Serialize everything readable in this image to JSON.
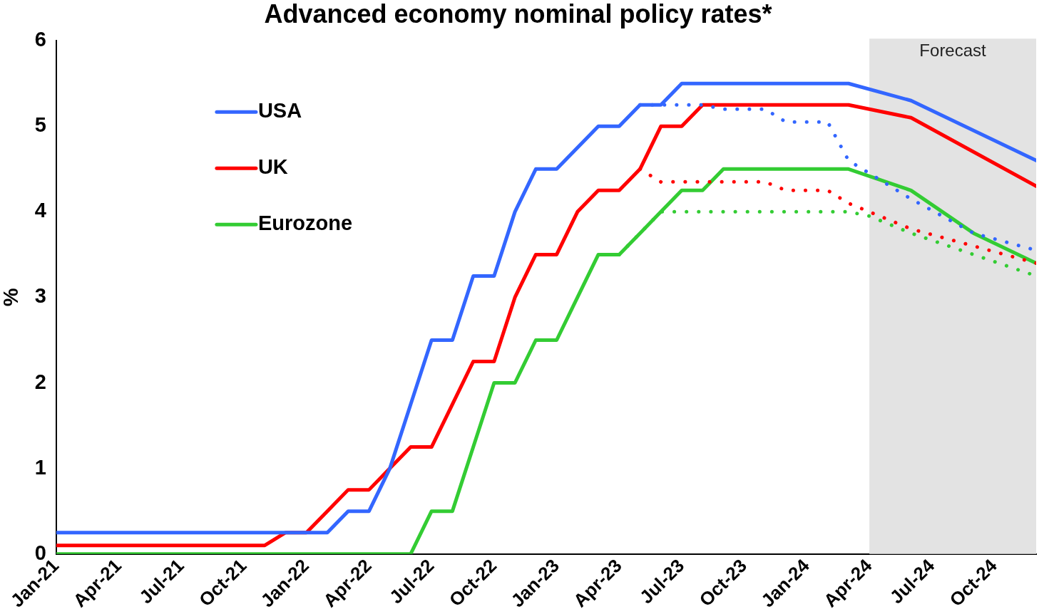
{
  "chart_data": {
    "type": "line",
    "title": "Advanced economy nominal policy rates*",
    "ylabel": "%",
    "xlim": [
      "2021-01",
      "2024-12"
    ],
    "xticks": [
      {
        "value": "2021-01",
        "label": "Jan-21"
      },
      {
        "value": "2021-04",
        "label": "Apr-21"
      },
      {
        "value": "2021-07",
        "label": "Jul-21"
      },
      {
        "value": "2021-10",
        "label": "Oct-21"
      },
      {
        "value": "2022-01",
        "label": "Jan-22"
      },
      {
        "value": "2022-04",
        "label": "Apr-22"
      },
      {
        "value": "2022-07",
        "label": "Jul-22"
      },
      {
        "value": "2022-10",
        "label": "Oct-22"
      },
      {
        "value": "2023-01",
        "label": "Jan-23"
      },
      {
        "value": "2023-04",
        "label": "Apr-23"
      },
      {
        "value": "2023-07",
        "label": "Jul-23"
      },
      {
        "value": "2023-10",
        "label": "Oct-23"
      },
      {
        "value": "2024-01",
        "label": "Jan-24"
      },
      {
        "value": "2024-04",
        "label": "Apr-24"
      },
      {
        "value": "2024-07",
        "label": "Jul-24"
      },
      {
        "value": "2024-10",
        "label": "Oct-24"
      }
    ],
    "ylim": [
      0,
      6
    ],
    "yticks": [
      0,
      1,
      2,
      3,
      4,
      5,
      6
    ],
    "grid": false,
    "legend": "top left",
    "marker": "none",
    "bands": [
      {
        "axis": "x",
        "from": "2024-04",
        "to": "2024-12",
        "label": "Forecast",
        "color": "#e3e3e3"
      }
    ],
    "series": [
      {
        "name": "USA",
        "color": "#3366ff",
        "line_style": "solid",
        "x": [
          "2021-01",
          "2021-02",
          "2021-03",
          "2021-04",
          "2021-05",
          "2021-06",
          "2021-07",
          "2021-08",
          "2021-09",
          "2021-10",
          "2021-11",
          "2021-12",
          "2022-01",
          "2022-02",
          "2022-03",
          "2022-04",
          "2022-05",
          "2022-06",
          "2022-07",
          "2022-08",
          "2022-09",
          "2022-10",
          "2022-11",
          "2022-12",
          "2023-01",
          "2023-02",
          "2023-03",
          "2023-04",
          "2023-05",
          "2023-06",
          "2023-07",
          "2023-08",
          "2023-09",
          "2023-10",
          "2023-11",
          "2023-12",
          "2024-01",
          "2024-02",
          "2024-03",
          "2024-06",
          "2024-12"
        ],
        "values": [
          0.25,
          0.25,
          0.25,
          0.25,
          0.25,
          0.25,
          0.25,
          0.25,
          0.25,
          0.25,
          0.25,
          0.25,
          0.25,
          0.25,
          0.5,
          0.5,
          1.0,
          1.75,
          2.5,
          2.5,
          3.25,
          3.25,
          4.0,
          4.5,
          4.5,
          4.75,
          5.0,
          5.0,
          5.25,
          5.25,
          5.5,
          5.5,
          5.5,
          5.5,
          5.5,
          5.5,
          5.5,
          5.5,
          5.5,
          5.3,
          4.6
        ]
      },
      {
        "name": "UK",
        "color": "#ff0000",
        "line_style": "solid",
        "x": [
          "2021-01",
          "2021-02",
          "2021-03",
          "2021-04",
          "2021-05",
          "2021-06",
          "2021-07",
          "2021-08",
          "2021-09",
          "2021-10",
          "2021-11",
          "2021-12",
          "2022-01",
          "2022-02",
          "2022-03",
          "2022-04",
          "2022-05",
          "2022-06",
          "2022-07",
          "2022-08",
          "2022-09",
          "2022-10",
          "2022-11",
          "2022-12",
          "2023-01",
          "2023-02",
          "2023-03",
          "2023-04",
          "2023-05",
          "2023-06",
          "2023-07",
          "2023-08",
          "2023-09",
          "2023-10",
          "2023-11",
          "2023-12",
          "2024-01",
          "2024-02",
          "2024-03",
          "2024-06",
          "2024-12"
        ],
        "values": [
          0.1,
          0.1,
          0.1,
          0.1,
          0.1,
          0.1,
          0.1,
          0.1,
          0.1,
          0.1,
          0.1,
          0.25,
          0.25,
          0.5,
          0.75,
          0.75,
          1.0,
          1.25,
          1.25,
          1.75,
          2.25,
          2.25,
          3.0,
          3.5,
          3.5,
          4.0,
          4.25,
          4.25,
          4.5,
          5.0,
          5.0,
          5.25,
          5.25,
          5.25,
          5.25,
          5.25,
          5.25,
          5.25,
          5.25,
          5.1,
          4.3
        ]
      },
      {
        "name": "Eurozone",
        "color": "#33cc33",
        "line_style": "solid",
        "x": [
          "2021-01",
          "2021-02",
          "2021-03",
          "2021-04",
          "2021-05",
          "2021-06",
          "2021-07",
          "2021-08",
          "2021-09",
          "2021-10",
          "2021-11",
          "2021-12",
          "2022-01",
          "2022-02",
          "2022-03",
          "2022-04",
          "2022-05",
          "2022-06",
          "2022-07",
          "2022-08",
          "2022-09",
          "2022-10",
          "2022-11",
          "2022-12",
          "2023-01",
          "2023-02",
          "2023-03",
          "2023-04",
          "2023-05",
          "2023-06",
          "2023-07",
          "2023-08",
          "2023-09",
          "2023-10",
          "2023-11",
          "2023-12",
          "2024-01",
          "2024-02",
          "2024-03",
          "2024-06",
          "2024-09",
          "2024-12"
        ],
        "values": [
          0,
          0,
          0,
          0,
          0,
          0,
          0,
          0,
          0,
          0,
          0,
          0,
          0,
          0,
          0,
          0,
          0,
          0,
          0.5,
          0.5,
          1.25,
          2.0,
          2.0,
          2.5,
          2.5,
          3.0,
          3.5,
          3.5,
          3.75,
          4.0,
          4.25,
          4.25,
          4.5,
          4.5,
          4.5,
          4.5,
          4.5,
          4.5,
          4.5,
          4.25,
          3.75,
          3.4
        ]
      },
      {
        "color": "#3366ff",
        "line_style": "dotted",
        "x": [
          "2023-05",
          "2023-06",
          "2023-07",
          "2023-08",
          "2023-09",
          "2023-10",
          "2023-11",
          "2023-12",
          "2024-01",
          "2024-02",
          "2024-03",
          "2024-04",
          "2024-06",
          "2024-09",
          "2024-12"
        ],
        "values": [
          5.25,
          5.25,
          5.25,
          5.25,
          5.2,
          5.2,
          5.2,
          5.05,
          5.05,
          5.05,
          4.6,
          4.45,
          4.15,
          3.75,
          3.55
        ]
      },
      {
        "color": "#ff0000",
        "line_style": "dotted",
        "x": [
          "2023-05",
          "2023-06",
          "2023-07",
          "2023-08",
          "2023-09",
          "2023-10",
          "2023-11",
          "2023-12",
          "2024-01",
          "2024-02",
          "2024-03",
          "2024-04",
          "2024-06",
          "2024-09",
          "2024-12"
        ],
        "values": [
          4.5,
          4.35,
          4.35,
          4.35,
          4.35,
          4.35,
          4.35,
          4.25,
          4.25,
          4.25,
          4.1,
          4.0,
          3.8,
          3.6,
          3.4
        ]
      },
      {
        "color": "#33cc33",
        "line_style": "dotted",
        "x": [
          "2023-04",
          "2023-05",
          "2023-06",
          "2023-07",
          "2023-08",
          "2023-09",
          "2023-10",
          "2023-11",
          "2023-12",
          "2024-01",
          "2024-02",
          "2024-03",
          "2024-04",
          "2024-06",
          "2024-09",
          "2024-12"
        ],
        "values": [
          3.5,
          3.75,
          4.0,
          4.0,
          4.0,
          4.0,
          4.0,
          4.0,
          4.0,
          4.0,
          4.0,
          4.0,
          3.95,
          3.75,
          3.5,
          3.25
        ]
      }
    ]
  }
}
